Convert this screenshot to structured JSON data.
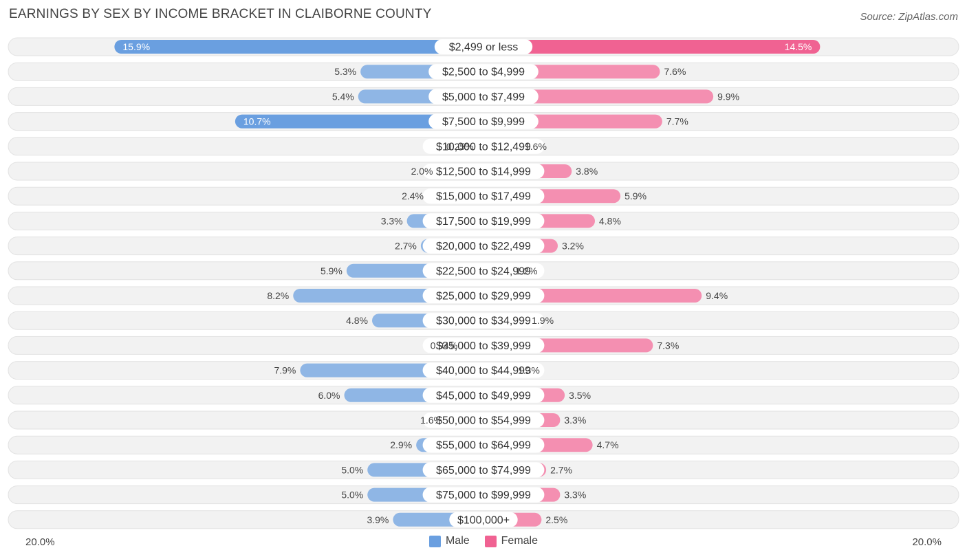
{
  "title": "EARNINGS BY SEX BY INCOME BRACKET IN CLAIBORNE COUNTY",
  "source": "Source: ZipAtlas.com",
  "colors": {
    "male": "#8fb6e5",
    "male_strong": "#6a9fe0",
    "female": "#f48fb1",
    "female_strong": "#f06292",
    "row_bg": "#f0f0f0"
  },
  "legend": {
    "male": "Male",
    "female": "Female"
  },
  "axis": {
    "left_label": "20.0%",
    "right_label": "20.0%"
  },
  "chart_data": {
    "type": "bar",
    "orientation": "horizontal-diverging",
    "axis_max": 20.0,
    "categories": [
      "$2,499 or less",
      "$2,500 to $4,999",
      "$5,000 to $7,499",
      "$7,500 to $9,999",
      "$10,000 to $12,499",
      "$12,500 to $14,999",
      "$15,000 to $17,499",
      "$17,500 to $19,999",
      "$20,000 to $22,499",
      "$22,500 to $24,999",
      "$25,000 to $29,999",
      "$30,000 to $34,999",
      "$35,000 to $39,999",
      "$40,000 to $44,999",
      "$45,000 to $49,999",
      "$50,000 to $54,999",
      "$55,000 to $64,999",
      "$65,000 to $74,999",
      "$75,000 to $99,999",
      "$100,000+"
    ],
    "series": [
      {
        "name": "Male",
        "values": [
          15.9,
          5.3,
          5.4,
          10.7,
          0.25,
          2.0,
          2.4,
          3.3,
          2.7,
          5.9,
          8.2,
          4.8,
          0.94,
          7.9,
          6.0,
          1.6,
          2.9,
          5.0,
          5.0,
          3.9
        ],
        "labels": [
          "15.9%",
          "5.3%",
          "5.4%",
          "10.7%",
          "0.25%",
          "2.0%",
          "2.4%",
          "3.3%",
          "2.7%",
          "5.9%",
          "8.2%",
          "4.8%",
          "0.94%",
          "7.9%",
          "6.0%",
          "1.6%",
          "2.9%",
          "5.0%",
          "5.0%",
          "3.9%"
        ]
      },
      {
        "name": "Female",
        "values": [
          14.5,
          7.6,
          9.9,
          7.7,
          1.6,
          3.8,
          5.9,
          4.8,
          3.2,
          1.2,
          9.4,
          1.9,
          7.3,
          1.3,
          3.5,
          3.3,
          4.7,
          2.7,
          3.3,
          2.5
        ],
        "labels": [
          "14.5%",
          "7.6%",
          "9.9%",
          "7.7%",
          "1.6%",
          "3.8%",
          "5.9%",
          "4.8%",
          "3.2%",
          "1.2%",
          "9.4%",
          "1.9%",
          "7.3%",
          "1.3%",
          "3.5%",
          "3.3%",
          "4.7%",
          "2.7%",
          "3.3%",
          "2.5%"
        ]
      }
    ]
  }
}
